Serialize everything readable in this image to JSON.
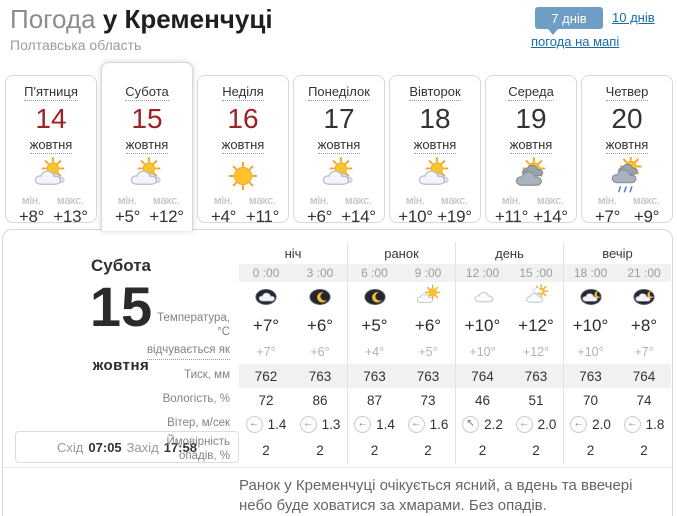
{
  "header": {
    "title_light": "Погода",
    "title_bold": "у Кременчуці",
    "subtitle": "Полтавська область",
    "range_7": "7 днів",
    "range_10": "10 днів",
    "map_link": "погода на мапі"
  },
  "colors": {
    "accent_blue": "#6f9dc4",
    "link_blue": "#1c6ba5",
    "date_red": "#9e1f24",
    "text_dark": "#333333",
    "text_gray": "#808080"
  },
  "week": {
    "min_label": "мін.",
    "max_label": "макс.",
    "days": [
      {
        "key": "friday",
        "name": "П'ятниця",
        "date": "14",
        "month": "жовтня",
        "date_red": true,
        "icon": "sun-cloud",
        "min": "+8°",
        "max": "+13°",
        "selected": false
      },
      {
        "key": "saturday",
        "name": "Субота",
        "date": "15",
        "month": "жовтня",
        "date_red": true,
        "icon": "sun-cloud",
        "min": "+5°",
        "max": "+12°",
        "selected": true
      },
      {
        "key": "sunday",
        "name": "Неділя",
        "date": "16",
        "month": "жовтня",
        "date_red": true,
        "icon": "sun",
        "min": "+4°",
        "max": "+11°",
        "selected": false
      },
      {
        "key": "monday",
        "name": "Понеділок",
        "date": "17",
        "month": "жовтня",
        "date_red": false,
        "icon": "sun-cloud",
        "min": "+6°",
        "max": "+14°",
        "selected": false
      },
      {
        "key": "tuesday",
        "name": "Вівторок",
        "date": "18",
        "month": "жовтня",
        "date_red": false,
        "icon": "sun-cloud",
        "min": "+10°",
        "max": "+19°",
        "selected": false
      },
      {
        "key": "wednesday",
        "name": "Середа",
        "date": "19",
        "month": "жовтня",
        "date_red": false,
        "icon": "sun-dark-cloud",
        "min": "+11°",
        "max": "+14°",
        "selected": false
      },
      {
        "key": "thursday",
        "name": "Четвер",
        "date": "20",
        "month": "жовтня",
        "date_red": false,
        "icon": "sun-dark-cloud-rain",
        "min": "+7°",
        "max": "+9°",
        "selected": false
      }
    ]
  },
  "detail": {
    "day_name": "Субота",
    "date": "15",
    "month": "жовтня",
    "sunrise_label": "Схід",
    "sunrise_time": "07:05",
    "sunset_label": "Захід",
    "sunset_time": "17:58",
    "periods": [
      {
        "key": "night",
        "label": "ніч"
      },
      {
        "key": "morning",
        "label": "ранок"
      },
      {
        "key": "day",
        "label": "день"
      },
      {
        "key": "evening",
        "label": "вечір"
      }
    ],
    "hours": [
      "0 :00",
      "3 :00",
      "6 :00",
      "9 :00",
      "12 :00",
      "15 :00",
      "18 :00",
      "21 :00"
    ],
    "hour_icons": [
      "night-cloud",
      "moon",
      "moon",
      "sun-small-cloud",
      "cloud",
      "cloud-sun",
      "night-cloud-moon",
      "night-cloud-moon"
    ],
    "rows": [
      {
        "key": "temperature",
        "label": "Температура, °C",
        "values": [
          "+7°",
          "+6°",
          "+5°",
          "+6°",
          "+10°",
          "+12°",
          "+10°",
          "+8°"
        ]
      },
      {
        "key": "feels-like",
        "label": "відчувається як",
        "values": [
          "+7°",
          "+6°",
          "+4°",
          "+5°",
          "+10°",
          "+12°",
          "+10°",
          "+7°"
        ]
      },
      {
        "key": "pressure",
        "label": "Тиск, мм",
        "values": [
          "762",
          "763",
          "763",
          "763",
          "764",
          "763",
          "763",
          "764"
        ]
      },
      {
        "key": "humidity",
        "label": "Вологість, %",
        "values": [
          "72",
          "86",
          "87",
          "73",
          "46",
          "51",
          "70",
          "74"
        ]
      },
      {
        "key": "wind",
        "label": "Вітер, м/сек",
        "values": [
          "1.4",
          "1.3",
          "1.4",
          "1.6",
          "2.2",
          "2.0",
          "2.0",
          "1.8"
        ],
        "directions": [
          "←",
          "←",
          "←",
          "←",
          "↖",
          "←",
          "←",
          "←"
        ]
      },
      {
        "key": "precipitation",
        "label": "Ймовірність опадів, %",
        "values": [
          "2",
          "2",
          "2",
          "2",
          "2",
          "2",
          "2",
          "2"
        ]
      }
    ],
    "summary": "Ранок у Кременчуці очікується ясний, а вдень та ввечері небо буде ховатися за хмарами. Без опадів."
  }
}
